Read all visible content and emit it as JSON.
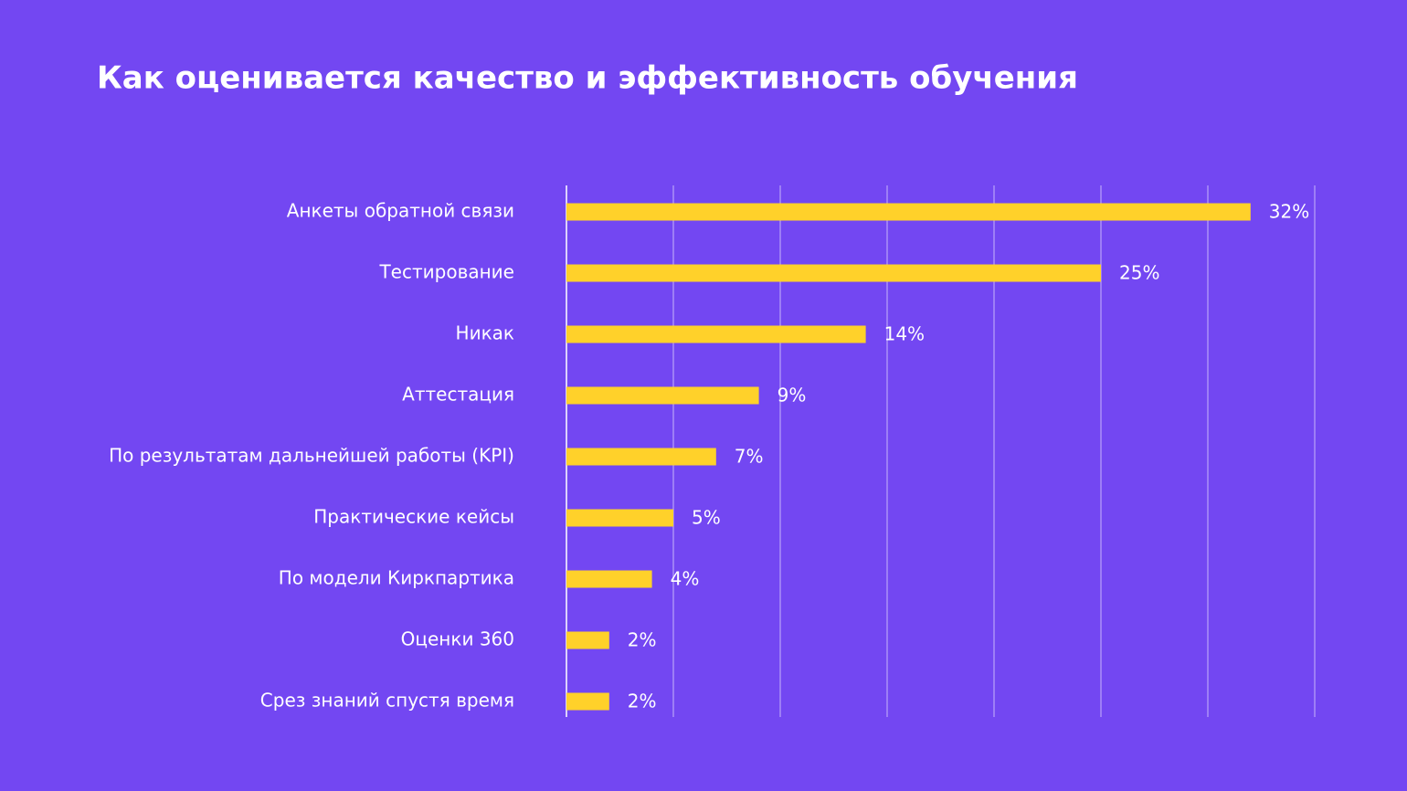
{
  "chart_data": {
    "type": "barh",
    "title": "Как оценивается качество и эффективность обучения",
    "categories": [
      "Анкеты обратной связи",
      "Тестирование",
      "Никак",
      "Аттестация",
      "По результатам дальнейшей работы (KPI)",
      "Практические кейсы",
      "По модели Киркпартика",
      "Оценки 360",
      "Срез знаний спустя время"
    ],
    "values": [
      32,
      25,
      14,
      9,
      7,
      5,
      4,
      2,
      2
    ],
    "value_labels": [
      "32%",
      "25%",
      "14%",
      "9%",
      "7%",
      "5%",
      "4%",
      "2%",
      "2%"
    ],
    "color": "#ffd12a",
    "xlim": [
      0,
      35
    ],
    "xticks": [
      0,
      5,
      10,
      15,
      20,
      25,
      30,
      35
    ],
    "grid": true
  }
}
